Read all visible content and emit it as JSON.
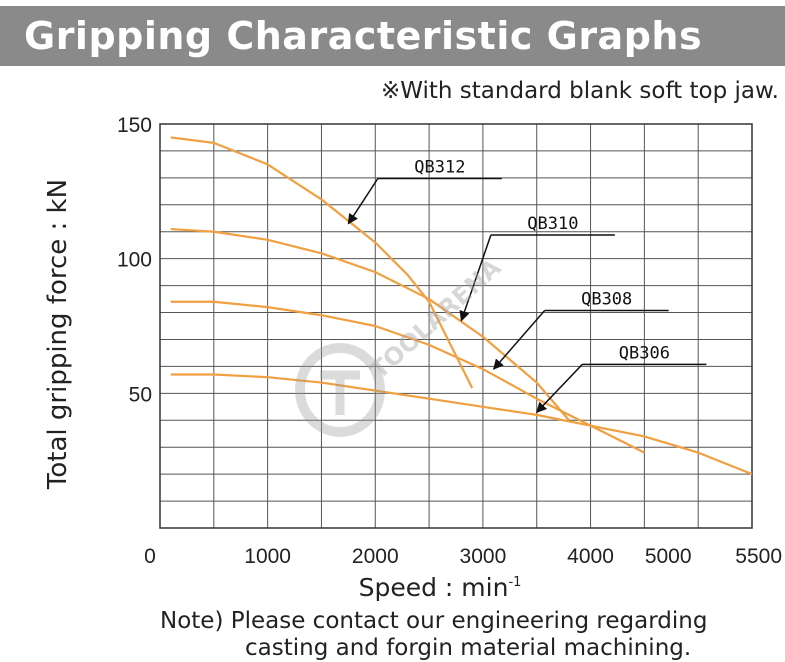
{
  "title": "Gripping Characteristic Graphs",
  "note_top": "※With standard blank soft top jaw.",
  "footer": {
    "line1": "Note)  Please contact our engineering regarding",
    "line2": "casting and forgin material machining."
  },
  "watermark_text": "TOOLARENA",
  "colors": {
    "curve": "#f0a040",
    "grid": "#555555",
    "title_bg": "#8a8a8a"
  },
  "chart_data": {
    "type": "line",
    "xlabel": "Speed : min",
    "xlabel_sup": "-1",
    "ylabel": "Total gripping force : kN",
    "xlim": [
      0,
      5500
    ],
    "ylim": [
      0,
      150
    ],
    "x_ticks": [
      "0",
      "1000",
      "2000",
      "3000",
      "4000",
      "5000",
      "5500"
    ],
    "y_ticks": [
      "50",
      "100",
      "150"
    ],
    "grid": true,
    "series": [
      {
        "name": "QB312",
        "points": [
          [
            100,
            145
          ],
          [
            500,
            143
          ],
          [
            1000,
            135
          ],
          [
            1500,
            122
          ],
          [
            2000,
            106
          ],
          [
            2300,
            94
          ],
          [
            2500,
            84
          ],
          [
            2700,
            68
          ],
          [
            2900,
            52
          ]
        ]
      },
      {
        "name": "QB310",
        "points": [
          [
            100,
            111
          ],
          [
            500,
            110
          ],
          [
            1000,
            107
          ],
          [
            1500,
            102
          ],
          [
            2000,
            95
          ],
          [
            2500,
            85
          ],
          [
            3000,
            71
          ],
          [
            3500,
            54
          ],
          [
            3800,
            40
          ]
        ]
      },
      {
        "name": "QB308",
        "points": [
          [
            100,
            84
          ],
          [
            500,
            84
          ],
          [
            1000,
            82
          ],
          [
            1500,
            79
          ],
          [
            2000,
            75
          ],
          [
            2500,
            68
          ],
          [
            3000,
            59
          ],
          [
            3500,
            48
          ],
          [
            4000,
            38
          ],
          [
            4500,
            28
          ]
        ]
      },
      {
        "name": "QB306",
        "points": [
          [
            100,
            57
          ],
          [
            500,
            57
          ],
          [
            1000,
            56
          ],
          [
            1500,
            54
          ],
          [
            2000,
            51
          ],
          [
            2500,
            48
          ],
          [
            3000,
            45
          ],
          [
            3500,
            42
          ],
          [
            4000,
            38
          ],
          [
            4500,
            34
          ],
          [
            5000,
            28
          ],
          [
            5500,
            20
          ]
        ]
      }
    ],
    "labels": [
      {
        "name": "QB312",
        "x": 2600,
        "y": 132,
        "arrow_to": [
          1750,
          113
        ]
      },
      {
        "name": "QB310",
        "x": 3650,
        "y": 111,
        "arrow_to": [
          2800,
          77
        ]
      },
      {
        "name": "QB308",
        "x": 4150,
        "y": 83,
        "arrow_to": [
          3100,
          59
        ]
      },
      {
        "name": "QB306",
        "x": 4500,
        "y": 63,
        "arrow_to": [
          3500,
          43
        ]
      }
    ]
  }
}
